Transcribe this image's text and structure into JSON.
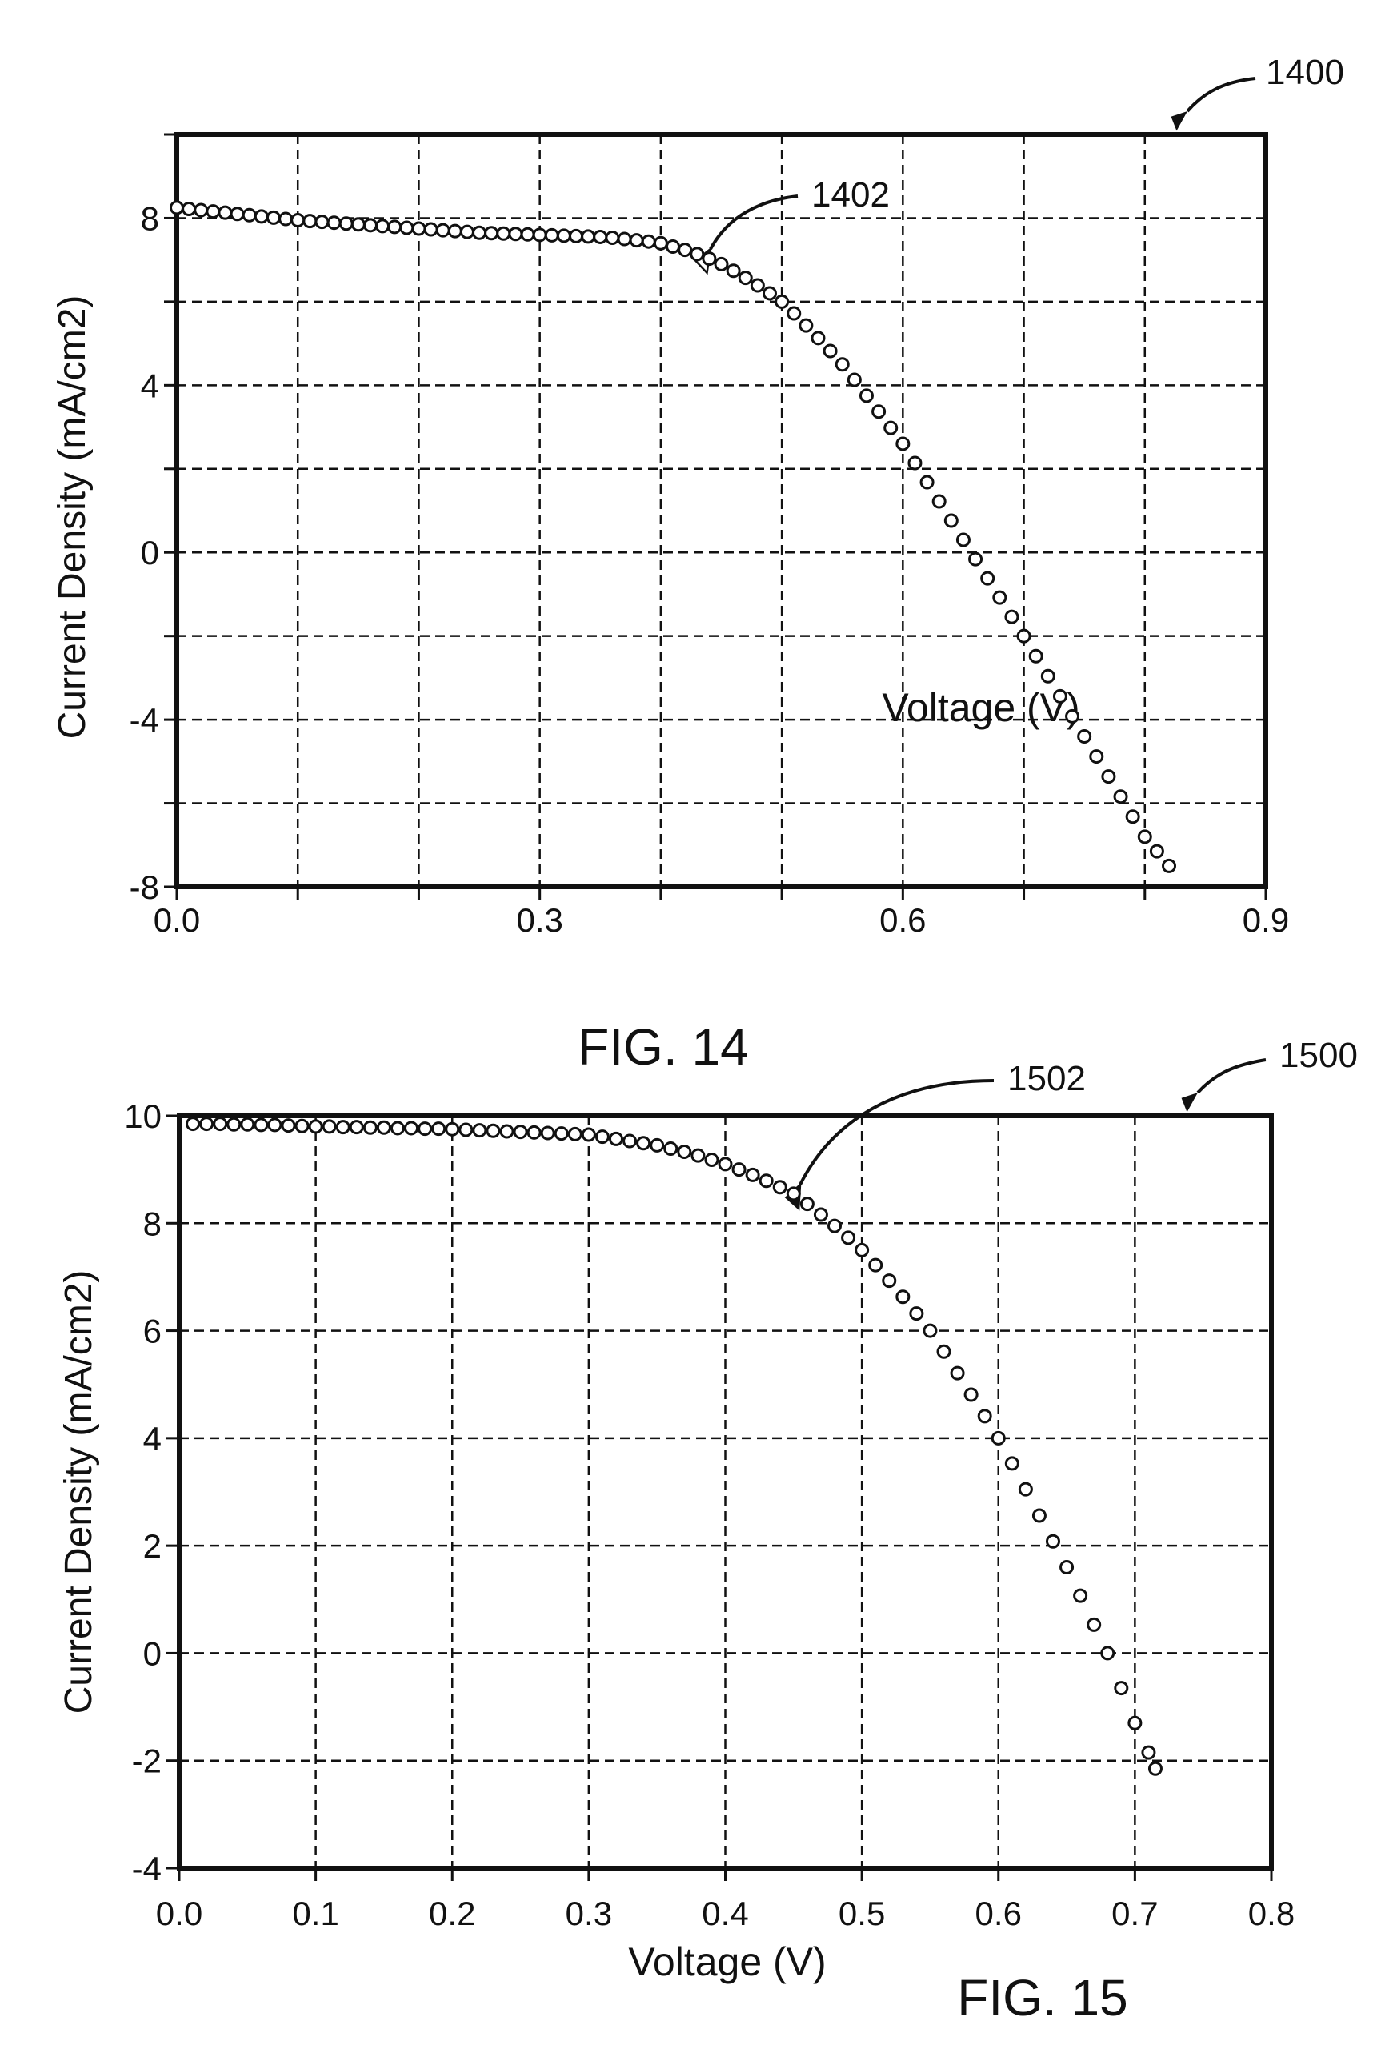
{
  "figures": [
    {
      "caption": "FIG. 14",
      "ref": "1400",
      "curve_ref": "1402"
    },
    {
      "caption": "FIG. 15",
      "ref": "1500",
      "curve_ref": "1502"
    }
  ],
  "colors": {
    "ink": "#111111",
    "background": "#ffffff"
  },
  "chart_data": [
    {
      "type": "scatter",
      "title": "",
      "xlabel": "Voltage (V)",
      "ylabel": "Current Density (mA/cm2)",
      "xlim": [
        0,
        0.9
      ],
      "ylim": [
        -8,
        10
      ],
      "x_ticks": [
        "0.0",
        "0.3",
        "0.6",
        "0.9"
      ],
      "y_ticks": [
        "-8",
        "-4",
        "0",
        "4",
        "8"
      ],
      "grid": true,
      "marker": "open-circle",
      "x": [
        0.0,
        0.01,
        0.02,
        0.03,
        0.04,
        0.05,
        0.06,
        0.07,
        0.08,
        0.09,
        0.1,
        0.11,
        0.12,
        0.13,
        0.14,
        0.15,
        0.16,
        0.17,
        0.18,
        0.19,
        0.2,
        0.21,
        0.22,
        0.23,
        0.24,
        0.25,
        0.26,
        0.27,
        0.28,
        0.29,
        0.3,
        0.31,
        0.32,
        0.33,
        0.34,
        0.35,
        0.36,
        0.37,
        0.38,
        0.39,
        0.4,
        0.41,
        0.42,
        0.43,
        0.44,
        0.45,
        0.46,
        0.47,
        0.48,
        0.49,
        0.5,
        0.51,
        0.52,
        0.53,
        0.54,
        0.55,
        0.56,
        0.57,
        0.58,
        0.59,
        0.6,
        0.61,
        0.62,
        0.63,
        0.64,
        0.65,
        0.66,
        0.67,
        0.68,
        0.69,
        0.7,
        0.71,
        0.72,
        0.73,
        0.74,
        0.75,
        0.76,
        0.77,
        0.78,
        0.79,
        0.8,
        0.81,
        0.82
      ],
      "y": [
        8.25,
        8.22,
        8.19,
        8.16,
        8.13,
        8.1,
        8.07,
        8.04,
        8.01,
        7.98,
        7.95,
        7.93,
        7.91,
        7.89,
        7.87,
        7.85,
        7.83,
        7.81,
        7.79,
        7.77,
        7.75,
        7.73,
        7.71,
        7.69,
        7.67,
        7.65,
        7.64,
        7.63,
        7.62,
        7.61,
        7.6,
        7.59,
        7.58,
        7.57,
        7.56,
        7.55,
        7.53,
        7.5,
        7.47,
        7.44,
        7.4,
        7.32,
        7.24,
        7.14,
        7.03,
        6.9,
        6.74,
        6.57,
        6.39,
        6.2,
        6.0,
        5.72,
        5.43,
        5.13,
        4.82,
        4.5,
        4.13,
        3.75,
        3.37,
        2.98,
        2.6,
        2.14,
        1.68,
        1.22,
        0.76,
        0.3,
        -0.16,
        -0.62,
        -1.08,
        -1.54,
        -2.0,
        -2.48,
        -2.96,
        -3.44,
        -3.92,
        -4.4,
        -4.88,
        -5.36,
        -5.84,
        -6.32,
        -6.8,
        -7.15,
        -7.5
      ]
    },
    {
      "type": "scatter",
      "title": "",
      "xlabel": "Voltage (V)",
      "ylabel": "Current Density (mA/cm2)",
      "xlim": [
        0,
        0.8
      ],
      "ylim": [
        -4,
        10
      ],
      "x_ticks": [
        "0.0",
        "0.1",
        "0.2",
        "0.3",
        "0.4",
        "0.5",
        "0.6",
        "0.7",
        "0.8"
      ],
      "y_ticks": [
        "-4",
        "-2",
        "0",
        "2",
        "4",
        "6",
        "8",
        "10"
      ],
      "grid": true,
      "marker": "open-circle",
      "x": [
        0.01,
        0.02,
        0.03,
        0.04,
        0.05,
        0.06,
        0.07,
        0.08,
        0.09,
        0.1,
        0.11,
        0.12,
        0.13,
        0.14,
        0.15,
        0.16,
        0.17,
        0.18,
        0.19,
        0.2,
        0.21,
        0.22,
        0.23,
        0.24,
        0.25,
        0.26,
        0.27,
        0.28,
        0.29,
        0.3,
        0.31,
        0.32,
        0.33,
        0.34,
        0.35,
        0.36,
        0.37,
        0.38,
        0.39,
        0.4,
        0.41,
        0.42,
        0.43,
        0.44,
        0.45,
        0.46,
        0.47,
        0.48,
        0.49,
        0.5,
        0.51,
        0.52,
        0.53,
        0.54,
        0.55,
        0.56,
        0.57,
        0.58,
        0.59,
        0.6,
        0.61,
        0.62,
        0.63,
        0.64,
        0.65,
        0.66,
        0.67,
        0.68,
        0.69,
        0.7,
        0.71,
        0.715
      ],
      "y": [
        9.85,
        9.85,
        9.85,
        9.84,
        9.84,
        9.83,
        9.83,
        9.82,
        9.81,
        9.8,
        9.8,
        9.79,
        9.79,
        9.78,
        9.78,
        9.77,
        9.77,
        9.76,
        9.76,
        9.75,
        9.74,
        9.73,
        9.72,
        9.71,
        9.7,
        9.69,
        9.68,
        9.67,
        9.66,
        9.65,
        9.61,
        9.57,
        9.53,
        9.49,
        9.45,
        9.39,
        9.33,
        9.26,
        9.18,
        9.1,
        9.0,
        8.9,
        8.79,
        8.67,
        8.55,
        8.36,
        8.16,
        7.95,
        7.73,
        7.5,
        7.22,
        6.93,
        6.63,
        6.32,
        6.0,
        5.61,
        5.21,
        4.81,
        4.41,
        4.0,
        3.53,
        3.05,
        2.56,
        2.08,
        1.6,
        1.07,
        0.53,
        0.0,
        -0.65,
        -1.3,
        -1.85,
        -2.15
      ]
    }
  ]
}
